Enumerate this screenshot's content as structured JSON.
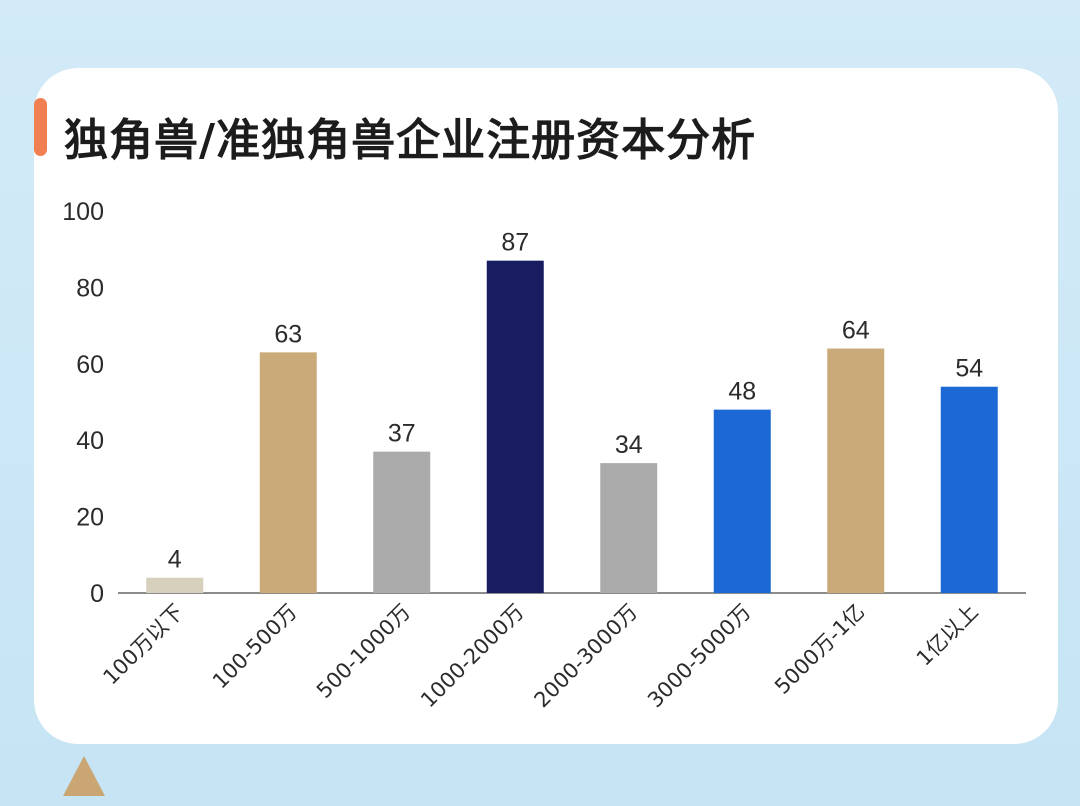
{
  "title": "独角兽/准独角兽企业注册资本分析",
  "colors": {
    "accent": "#f07f52",
    "triangle": "#c9a673",
    "text": "#1c1c1c"
  },
  "chart_data": {
    "type": "bar",
    "categories": [
      "100万以下",
      "100-500万",
      "500-1000万",
      "1000-2000万",
      "2000-3000万",
      "3000-5000万",
      "5000万-1亿",
      "1亿以上"
    ],
    "values": [
      4,
      63,
      37,
      87,
      34,
      48,
      64,
      54
    ],
    "bar_colors": [
      "#d6d0bd",
      "#c9aa78",
      "#aaaaaa",
      "#181d62",
      "#aaaaaa",
      "#1c68d4",
      "#c9aa78",
      "#1c68d4"
    ],
    "yticks": [
      0,
      20,
      40,
      60,
      80,
      100
    ],
    "ylim": [
      0,
      100
    ],
    "grid": false,
    "legend": "none"
  }
}
